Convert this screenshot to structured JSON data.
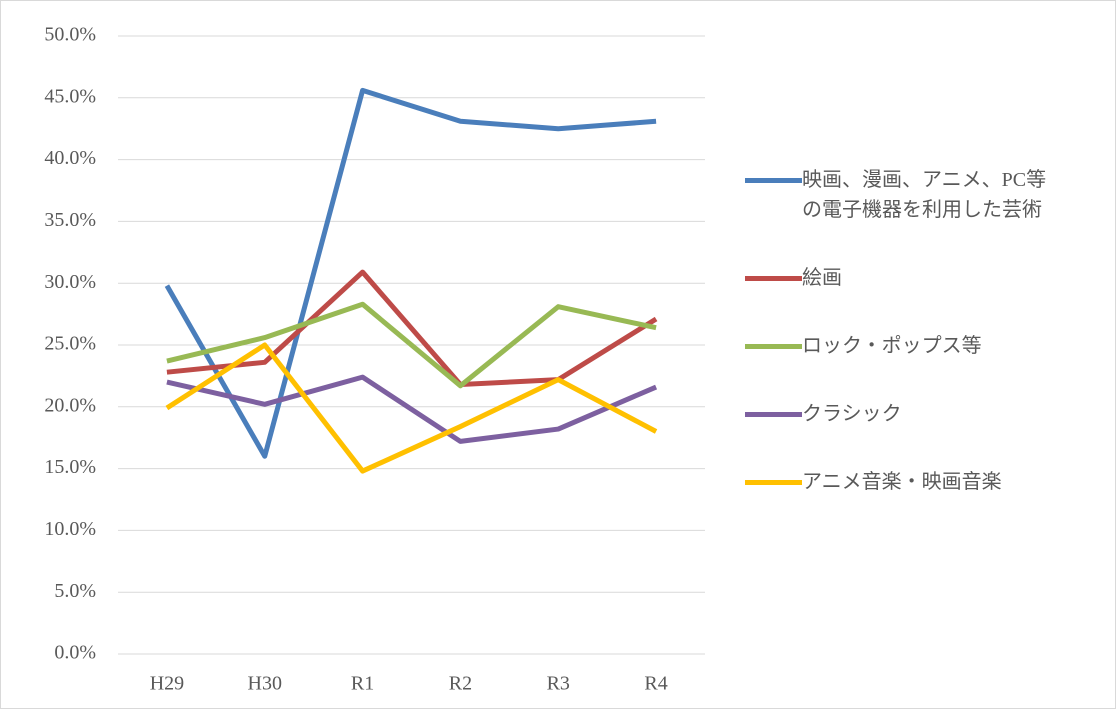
{
  "chart_data": {
    "type": "line",
    "categories": [
      "H29",
      "H30",
      "R1",
      "R2",
      "R3",
      "R4"
    ],
    "series": [
      {
        "name": "映画、漫画、アニメ、PC等の電子機器を利用した芸術",
        "color": "#4a7ebb",
        "values": [
          29.8,
          16.0,
          45.6,
          43.1,
          42.5,
          43.1
        ]
      },
      {
        "name": "絵画",
        "color": "#be4b48",
        "values": [
          22.8,
          23.6,
          30.9,
          21.8,
          22.2,
          27.1
        ]
      },
      {
        "name": "ロック・ポップス等",
        "color": "#98b954",
        "values": [
          23.7,
          25.6,
          28.3,
          21.7,
          28.1,
          26.4
        ]
      },
      {
        "name": "クラシック",
        "color": "#7d60a0",
        "values": [
          22.0,
          20.2,
          22.4,
          17.2,
          18.2,
          21.6
        ]
      },
      {
        "name": "アニメ音楽・映画音楽",
        "color": "#ffc000",
        "values": [
          19.9,
          25.0,
          14.8,
          18.4,
          22.2,
          18.0
        ]
      }
    ],
    "ylim": [
      0,
      50
    ],
    "yticks": [
      {
        "value": 0,
        "label": "0.0%"
      },
      {
        "value": 5,
        "label": "5.0%"
      },
      {
        "value": 10,
        "label": "10.0%"
      },
      {
        "value": 15,
        "label": "15.0%"
      },
      {
        "value": 20,
        "label": "20.0%"
      },
      {
        "value": 25,
        "label": "25.0%"
      },
      {
        "value": 30,
        "label": "30.0%"
      },
      {
        "value": 35,
        "label": "35.0%"
      },
      {
        "value": 40,
        "label": "40.0%"
      },
      {
        "value": 45,
        "label": "45.0%"
      },
      {
        "value": 50,
        "label": "50.0%"
      }
    ],
    "grid": true,
    "legend": "right"
  }
}
